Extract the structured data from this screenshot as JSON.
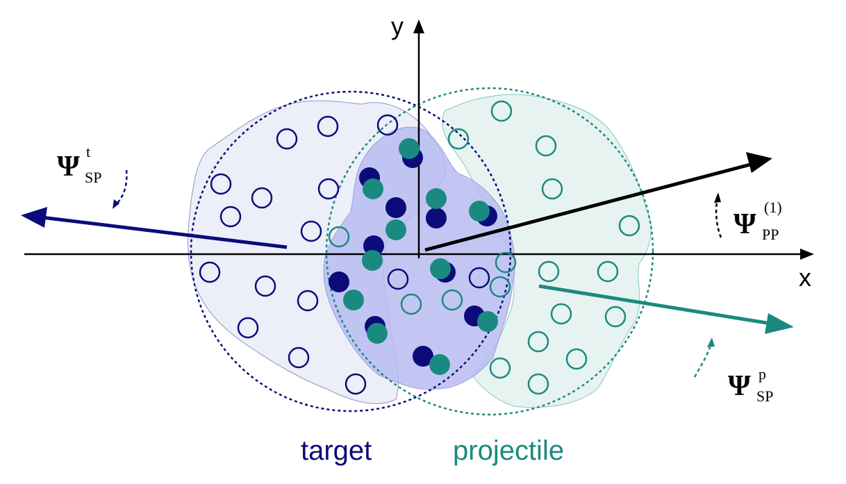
{
  "axes": {
    "x_label": "x",
    "y_label": "y"
  },
  "labels": {
    "target": "target",
    "projectile": "projectile"
  },
  "planes": {
    "psi_sp_target": {
      "symbol": "Ψ",
      "sub": "SP",
      "sup": "t"
    },
    "psi_pp": {
      "symbol": "Ψ",
      "sub": "PP",
      "sup": "(1)"
    },
    "psi_sp_projectile": {
      "symbol": "Ψ",
      "sub": "SP",
      "sup": "p"
    }
  },
  "colors": {
    "target": "#0b0b7a",
    "projectile": "#1a8a80",
    "overlap_fill": "#b9bdf2",
    "target_fill": "#eceef8",
    "projectile_fill": "#e6f3f1",
    "axis": "#000000"
  }
}
